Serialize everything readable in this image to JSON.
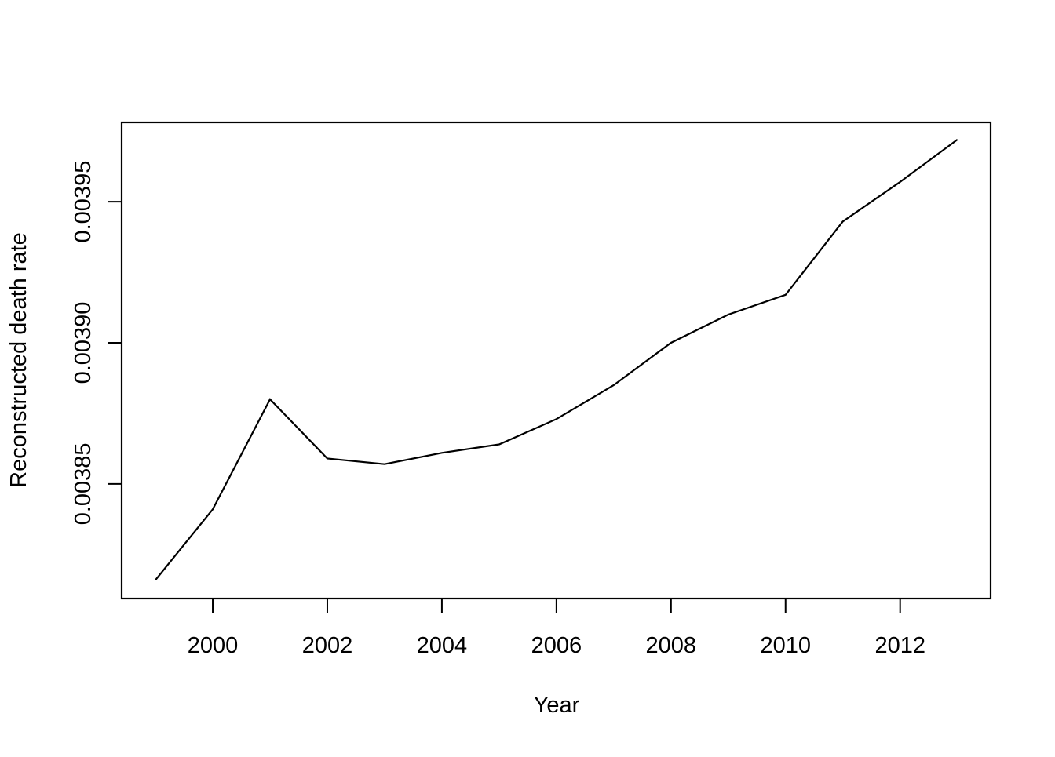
{
  "chart_data": {
    "type": "line",
    "title": "",
    "xlabel": "Year",
    "ylabel": "Reconstructed death rate",
    "x": [
      1999,
      2000,
      2001,
      2002,
      2003,
      2004,
      2005,
      2006,
      2007,
      2008,
      2009,
      2010,
      2011,
      2012,
      2013
    ],
    "values": [
      0.003816,
      0.003841,
      0.00388,
      0.003859,
      0.003857,
      0.003861,
      0.003864,
      0.003873,
      0.003885,
      0.0039,
      0.00391,
      0.003917,
      0.003943,
      0.003957,
      0.003972
    ],
    "x_tick_values": [
      2000,
      2002,
      2004,
      2006,
      2008,
      2010,
      2012
    ],
    "x_tick_labels": [
      "2000",
      "2002",
      "2004",
      "2006",
      "2008",
      "2010",
      "2012"
    ],
    "y_tick_values": [
      0.00385,
      0.0039,
      0.00395
    ],
    "y_tick_labels": [
      "0.00385",
      "0.00390",
      "0.00395"
    ],
    "xlim": [
      1998.41,
      2013.58
    ],
    "ylim": [
      0.0038094,
      0.0039781
    ],
    "grid": false,
    "legend_position": "none",
    "line_color": "#000000",
    "background_color": "#ffffff",
    "series": [
      {
        "name": "Reconstructed death rate",
        "values": [
          0.003816,
          0.003841,
          0.00388,
          0.003859,
          0.003857,
          0.003861,
          0.003864,
          0.003873,
          0.003885,
          0.0039,
          0.00391,
          0.003917,
          0.003943,
          0.003957,
          0.003972
        ]
      }
    ]
  }
}
